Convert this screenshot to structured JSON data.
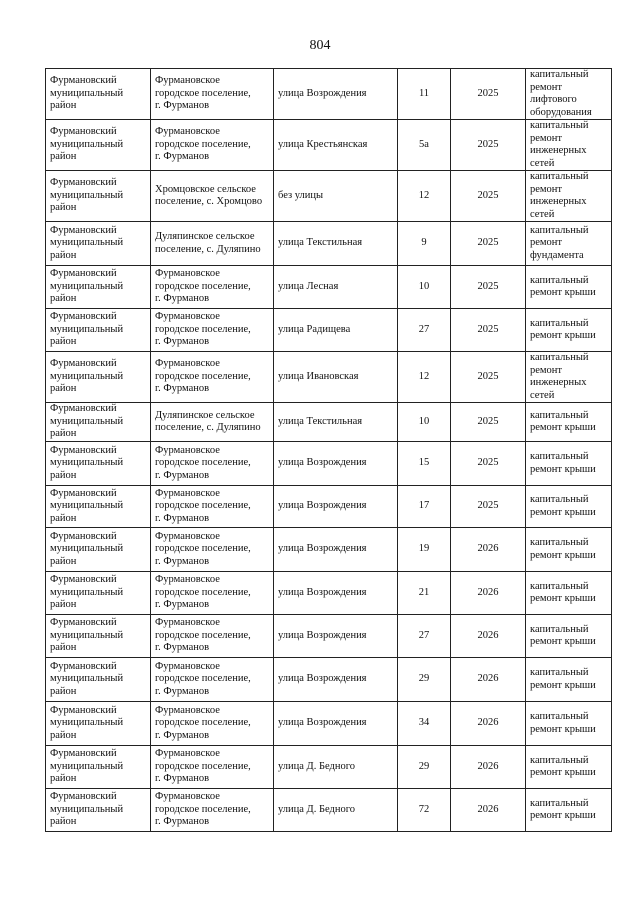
{
  "page_number": "804",
  "rows": [
    {
      "district": "Фурмановский\nмуниципальный\nрайон",
      "settlement": "Фурмановское\nгородское поселение,\nг. Фурманов",
      "street": "улица Возрождения",
      "house": "11",
      "year": "2025",
      "work": "капитальный\nремонт\nлифтового\nоборудования"
    },
    {
      "district": "Фурмановский\nмуниципальный\nрайон",
      "settlement": "Фурмановское\nгородское поселение,\nг. Фурманов",
      "street": "улица Крестьянская",
      "house": "5а",
      "year": "2025",
      "work": "капитальный\nремонт\nинженерных\nсетей"
    },
    {
      "district": "Фурмановский\nмуниципальный\nрайон",
      "settlement": "Хромцовское сельское\nпоселение, с. Хромцово",
      "street": "без улицы",
      "house": "12",
      "year": "2025",
      "work": "капитальный\nремонт\nинженерных\nсетей"
    },
    {
      "district": "Фурмановский\nмуниципальный\nрайон",
      "settlement": "Дуляпинское сельское\nпоселение, с. Дуляпино",
      "street": "улица Текстильная",
      "house": "9",
      "year": "2025",
      "work": "капитальный\nремонт\nфундамента"
    },
    {
      "district": "Фурмановский\nмуниципальный\nрайон",
      "settlement": "Фурмановское\nгородское поселение,\nг. Фурманов",
      "street": "улица Лесная",
      "house": "10",
      "year": "2025",
      "work": "капитальный\nремонт крыши"
    },
    {
      "district": "Фурмановский\nмуниципальный\nрайон",
      "settlement": "Фурмановское\nгородское поселение,\nг. Фурманов",
      "street": "улица Радищева",
      "house": "27",
      "year": "2025",
      "work": "капитальный\nремонт крыши"
    },
    {
      "district": "Фурмановский\nмуниципальный\nрайон",
      "settlement": "Фурмановское\nгородское поселение,\nг. Фурманов",
      "street": "улица  Ивановская",
      "house": "12",
      "year": "2025",
      "work": "капитальный\nремонт\nинженерных\nсетей"
    },
    {
      "district": "Фурмановский\nмуниципальный\nрайон",
      "settlement": "Дуляпинское сельское\nпоселение, с. Дуляпино",
      "street": "улица Текстильная",
      "house": "10",
      "year": "2025",
      "work": "капитальный\nремонт крыши"
    },
    {
      "district": "Фурмановский\nмуниципальный\nрайон",
      "settlement": "Фурмановское\nгородское поселение,\nг. Фурманов",
      "street": "улица Возрождения",
      "house": "15",
      "year": "2025",
      "work": "капитальный\nремонт крыши"
    },
    {
      "district": "Фурмановский\nмуниципальный\nрайон",
      "settlement": "Фурмановское\nгородское поселение,\nг. Фурманов",
      "street": "улица Возрождения",
      "house": "17",
      "year": "2025",
      "work": "капитальный\nремонт крыши"
    },
    {
      "district": "Фурмановский\nмуниципальный\nрайон",
      "settlement": "Фурмановское\nгородское поселение,\nг. Фурманов",
      "street": "улица Возрождения",
      "house": "19",
      "year": "2026",
      "work": "капитальный\nремонт крыши"
    },
    {
      "district": "Фурмановский\nмуниципальный\nрайон",
      "settlement": "Фурмановское\nгородское поселение,\nг. Фурманов",
      "street": "улица Возрождения",
      "house": "21",
      "year": "2026",
      "work": "капитальный\nремонт крыши"
    },
    {
      "district": "Фурмановский\nмуниципальный\nрайон",
      "settlement": "Фурмановское\nгородское поселение,\nг. Фурманов",
      "street": "улица Возрождения",
      "house": "27",
      "year": "2026",
      "work": "капитальный\nремонт крыши"
    },
    {
      "district": "Фурмановский\nмуниципальный\nрайон",
      "settlement": "Фурмановское\nгородское поселение,\nг. Фурманов",
      "street": "улица Возрождения",
      "house": "29",
      "year": "2026",
      "work": "капитальный\nремонт крыши"
    },
    {
      "district": "Фурмановский\nмуниципальный\nрайон",
      "settlement": "Фурмановское\nгородское поселение,\nг. Фурманов",
      "street": "улица Возрождения",
      "house": "34",
      "year": "2026",
      "work": "капитальный\nремонт крыши"
    },
    {
      "district": "Фурмановский\nмуниципальный\nрайон",
      "settlement": "Фурмановское\nгородское поселение,\nг. Фурманов",
      "street": "улица Д. Бедного",
      "house": "29",
      "year": "2026",
      "work": "капитальный\nремонт крыши"
    },
    {
      "district": "Фурмановский\nмуниципальный\nрайон",
      "settlement": "Фурмановское\nгородское поселение,\nг. Фурманов",
      "street": "улица Д. Бедного",
      "house": "72",
      "year": "2026",
      "work": "капитальный\nремонт крыши"
    }
  ]
}
